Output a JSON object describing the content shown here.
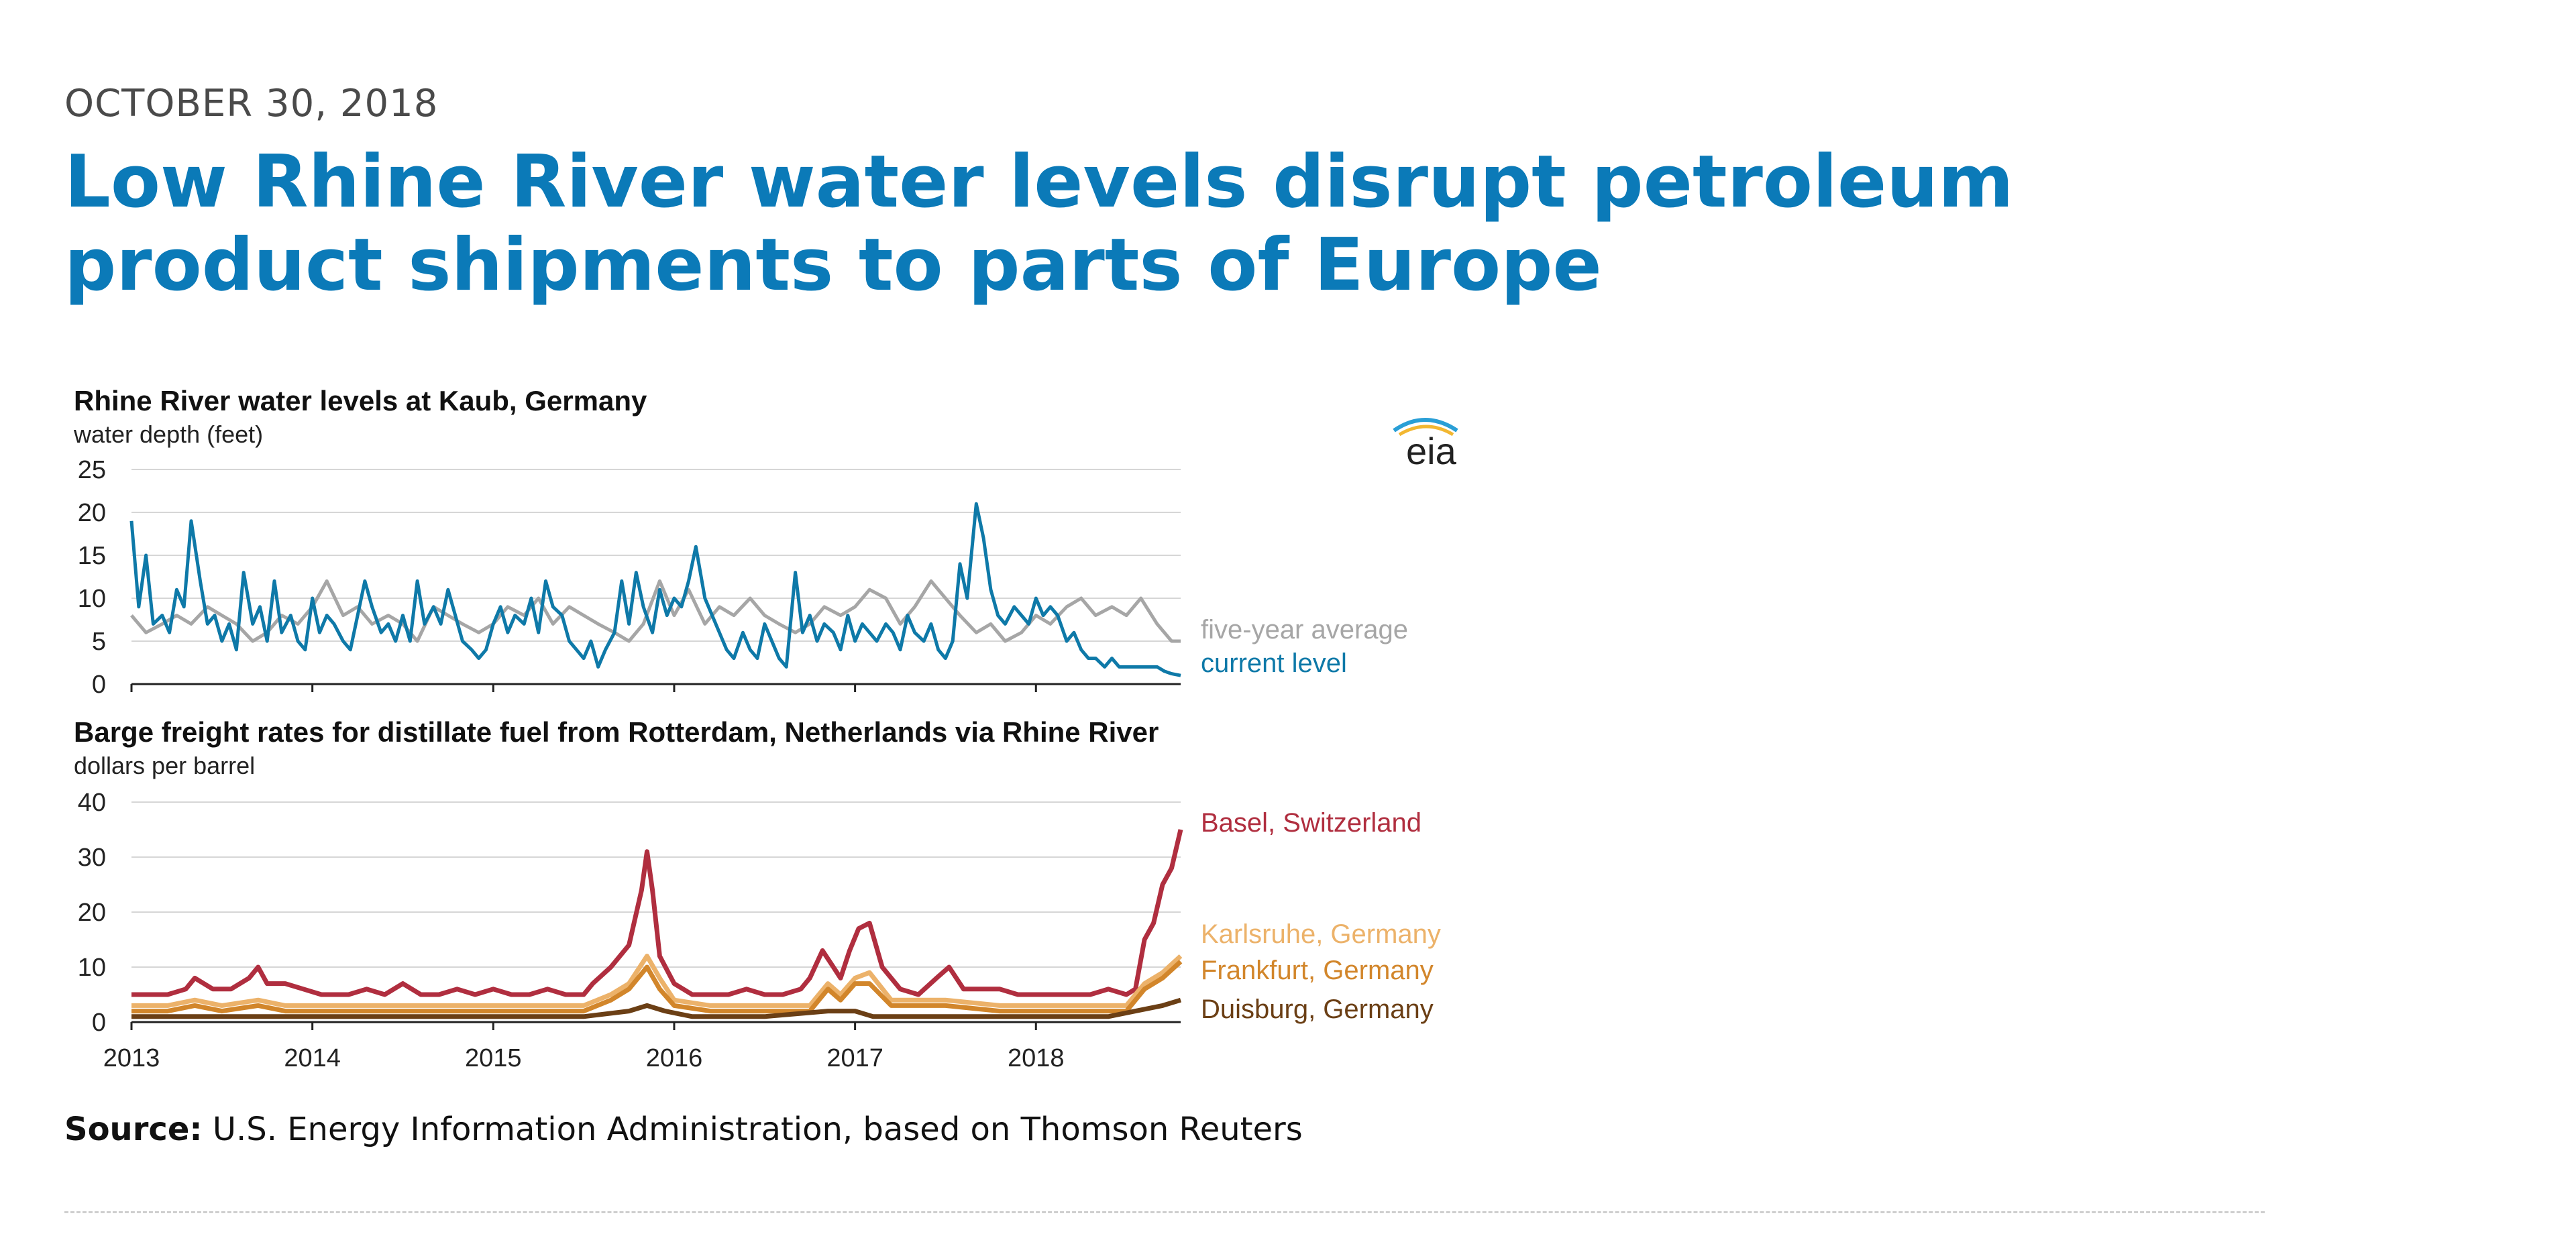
{
  "article": {
    "date": "OCTOBER 30, 2018",
    "title": "Low Rhine River water levels disrupt petroleum product shipments to parts of Europe",
    "source_label": "Source:",
    "source_text": " U.S. Energy Information Administration, based on Thomson Reuters"
  },
  "logo": {
    "text": "eia"
  },
  "chart_data": [
    {
      "type": "line",
      "title": "Rhine River water levels at Kaub, Germany",
      "ylabel": "water depth (feet)",
      "ylim": [
        0,
        25
      ],
      "yticks": [
        0,
        5,
        10,
        15,
        20,
        25
      ],
      "xlim": [
        2013,
        2018.8
      ],
      "grid": true,
      "legend": "right-inline",
      "series": [
        {
          "name": "five-year average",
          "color": "#a6a6a6",
          "x": [
            2013.0,
            2013.08,
            2013.17,
            2013.25,
            2013.33,
            2013.42,
            2013.5,
            2013.58,
            2013.67,
            2013.75,
            2013.83,
            2013.92,
            2014.0,
            2014.08,
            2014.17,
            2014.25,
            2014.33,
            2014.42,
            2014.5,
            2014.58,
            2014.67,
            2014.75,
            2014.83,
            2014.92,
            2015.0,
            2015.08,
            2015.17,
            2015.25,
            2015.33,
            2015.42,
            2015.5,
            2015.58,
            2015.67,
            2015.75,
            2015.83,
            2015.92,
            2016.0,
            2016.08,
            2016.17,
            2016.25,
            2016.33,
            2016.42,
            2016.5,
            2016.58,
            2016.67,
            2016.75,
            2016.83,
            2016.92,
            2017.0,
            2017.08,
            2017.17,
            2017.25,
            2017.33,
            2017.42,
            2017.5,
            2017.58,
            2017.67,
            2017.75,
            2017.83,
            2017.92,
            2018.0,
            2018.08,
            2018.17,
            2018.25,
            2018.33,
            2018.42,
            2018.5,
            2018.58,
            2018.67,
            2018.75,
            2018.8
          ],
          "values": [
            8,
            6,
            7,
            8,
            7,
            9,
            8,
            7,
            5,
            6,
            8,
            7,
            9,
            12,
            8,
            9,
            7,
            8,
            7,
            5,
            9,
            8,
            7,
            6,
            7,
            9,
            8,
            10,
            7,
            9,
            8,
            7,
            6,
            5,
            7,
            12,
            8,
            11,
            7,
            9,
            8,
            10,
            8,
            7,
            6,
            7,
            9,
            8,
            9,
            11,
            10,
            7,
            9,
            12,
            10,
            8,
            6,
            7,
            5,
            6,
            8,
            7,
            9,
            10,
            8,
            9,
            8,
            10,
            7,
            5,
            5
          ]
        },
        {
          "name": "current level",
          "color": "#0e79a8",
          "x": [
            2013.0,
            2013.04,
            2013.08,
            2013.12,
            2013.17,
            2013.21,
            2013.25,
            2013.29,
            2013.33,
            2013.38,
            2013.42,
            2013.46,
            2013.5,
            2013.54,
            2013.58,
            2013.62,
            2013.67,
            2013.71,
            2013.75,
            2013.79,
            2013.83,
            2013.88,
            2013.92,
            2013.96,
            2014.0,
            2014.04,
            2014.08,
            2014.12,
            2014.17,
            2014.21,
            2014.25,
            2014.29,
            2014.33,
            2014.38,
            2014.42,
            2014.46,
            2014.5,
            2014.54,
            2014.58,
            2014.62,
            2014.67,
            2014.71,
            2014.75,
            2014.79,
            2014.83,
            2014.88,
            2014.92,
            2014.96,
            2015.0,
            2015.04,
            2015.08,
            2015.12,
            2015.17,
            2015.21,
            2015.25,
            2015.29,
            2015.33,
            2015.38,
            2015.42,
            2015.46,
            2015.5,
            2015.54,
            2015.58,
            2015.62,
            2015.67,
            2015.71,
            2015.75,
            2015.79,
            2015.83,
            2015.88,
            2015.92,
            2015.96,
            2016.0,
            2016.04,
            2016.08,
            2016.12,
            2016.17,
            2016.21,
            2016.25,
            2016.29,
            2016.33,
            2016.38,
            2016.42,
            2016.46,
            2016.5,
            2016.54,
            2016.58,
            2016.62,
            2016.67,
            2016.71,
            2016.75,
            2016.79,
            2016.83,
            2016.88,
            2016.92,
            2016.96,
            2017.0,
            2017.04,
            2017.08,
            2017.12,
            2017.17,
            2017.21,
            2017.25,
            2017.29,
            2017.33,
            2017.38,
            2017.42,
            2017.46,
            2017.5,
            2017.54,
            2017.58,
            2017.62,
            2017.67,
            2017.71,
            2017.75,
            2017.79,
            2017.83,
            2017.88,
            2017.92,
            2017.96,
            2018.0,
            2018.04,
            2018.08,
            2018.12,
            2018.17,
            2018.21,
            2018.25,
            2018.29,
            2018.33,
            2018.38,
            2018.42,
            2018.46,
            2018.5,
            2018.54,
            2018.58,
            2018.62,
            2018.67,
            2018.71,
            2018.75,
            2018.8
          ],
          "values": [
            19,
            9,
            15,
            7,
            8,
            6,
            11,
            9,
            19,
            12,
            7,
            8,
            5,
            7,
            4,
            13,
            7,
            9,
            5,
            12,
            6,
            8,
            5,
            4,
            10,
            6,
            8,
            7,
            5,
            4,
            8,
            12,
            9,
            6,
            7,
            5,
            8,
            5,
            12,
            7,
            9,
            7,
            11,
            8,
            5,
            4,
            3,
            4,
            7,
            9,
            6,
            8,
            7,
            10,
            6,
            12,
            9,
            8,
            5,
            4,
            3,
            5,
            2,
            4,
            6,
            12,
            7,
            13,
            9,
            6,
            11,
            8,
            10,
            9,
            12,
            16,
            10,
            8,
            6,
            4,
            3,
            6,
            4,
            3,
            7,
            5,
            3,
            2,
            13,
            6,
            8,
            5,
            7,
            6,
            4,
            8,
            5,
            7,
            6,
            5,
            7,
            6,
            4,
            8,
            6,
            5,
            7,
            4,
            3,
            5,
            14,
            10,
            21,
            17,
            11,
            8,
            7,
            9,
            8,
            7,
            10,
            8,
            9,
            8,
            5,
            6,
            4,
            3,
            3,
            2,
            3,
            2,
            2,
            2,
            2,
            2,
            2,
            1.5,
            1.2,
            1
          ]
        }
      ]
    },
    {
      "type": "line",
      "title": "Barge freight rates for distillate fuel from Rotterdam, Netherlands via Rhine River",
      "ylabel": "dollars per barrel",
      "ylim": [
        0,
        40
      ],
      "yticks": [
        0,
        10,
        20,
        30,
        40
      ],
      "xlim": [
        2013,
        2018.8
      ],
      "xticks": [
        "2013",
        "2014",
        "2015",
        "2016",
        "2017",
        "2018"
      ],
      "grid": true,
      "legend": "right-inline",
      "series": [
        {
          "name": "Basel, Switzerland",
          "color": "#b02e3f",
          "x": [
            2013.0,
            2013.1,
            2013.2,
            2013.3,
            2013.35,
            2013.45,
            2013.55,
            2013.65,
            2013.7,
            2013.75,
            2013.85,
            2013.95,
            2014.05,
            2014.2,
            2014.3,
            2014.4,
            2014.5,
            2014.6,
            2014.7,
            2014.8,
            2014.9,
            2015.0,
            2015.1,
            2015.2,
            2015.3,
            2015.4,
            2015.5,
            2015.55,
            2015.65,
            2015.75,
            2015.82,
            2015.85,
            2015.88,
            2015.92,
            2016.0,
            2016.1,
            2016.2,
            2016.3,
            2016.4,
            2016.5,
            2016.6,
            2016.7,
            2016.75,
            2016.82,
            2016.88,
            2016.92,
            2016.97,
            2017.02,
            2017.08,
            2017.15,
            2017.25,
            2017.35,
            2017.45,
            2017.52,
            2017.6,
            2017.7,
            2017.8,
            2017.9,
            2018.0,
            2018.1,
            2018.2,
            2018.3,
            2018.4,
            2018.5,
            2018.55,
            2018.6,
            2018.65,
            2018.7,
            2018.75,
            2018.8
          ],
          "values": [
            5,
            5,
            5,
            6,
            8,
            6,
            6,
            8,
            10,
            7,
            7,
            6,
            5,
            5,
            6,
            5,
            7,
            5,
            5,
            6,
            5,
            6,
            5,
            5,
            6,
            5,
            5,
            7,
            10,
            14,
            24,
            31,
            24,
            12,
            7,
            5,
            5,
            5,
            6,
            5,
            5,
            6,
            8,
            13,
            10,
            8,
            13,
            17,
            18,
            10,
            6,
            5,
            8,
            10,
            6,
            6,
            6,
            5,
            5,
            5,
            5,
            5,
            6,
            5,
            6,
            15,
            18,
            25,
            28,
            35
          ]
        },
        {
          "name": "Karlsruhe, Germany",
          "color": "#ecb26a",
          "x": [
            2013.0,
            2013.2,
            2013.35,
            2013.5,
            2013.7,
            2013.85,
            2014.0,
            2014.3,
            2014.5,
            2014.8,
            2015.0,
            2015.3,
            2015.5,
            2015.65,
            2015.75,
            2015.85,
            2015.92,
            2016.0,
            2016.2,
            2016.5,
            2016.75,
            2016.85,
            2016.92,
            2017.0,
            2017.08,
            2017.2,
            2017.5,
            2017.8,
            2018.0,
            2018.3,
            2018.5,
            2018.6,
            2018.7,
            2018.8
          ],
          "values": [
            3,
            3,
            4,
            3,
            4,
            3,
            3,
            3,
            3,
            3,
            3,
            3,
            3,
            5,
            7,
            12,
            8,
            4,
            3,
            3,
            3,
            7,
            5,
            8,
            9,
            4,
            4,
            3,
            3,
            3,
            3,
            7,
            9,
            12
          ]
        },
        {
          "name": "Frankfurt, Germany",
          "color": "#d2862b",
          "x": [
            2013.0,
            2013.2,
            2013.35,
            2013.5,
            2013.7,
            2013.85,
            2014.0,
            2014.3,
            2014.5,
            2014.8,
            2015.0,
            2015.3,
            2015.5,
            2015.65,
            2015.75,
            2015.85,
            2015.92,
            2016.0,
            2016.2,
            2016.5,
            2016.75,
            2016.85,
            2016.92,
            2017.0,
            2017.08,
            2017.2,
            2017.5,
            2017.8,
            2018.0,
            2018.3,
            2018.5,
            2018.6,
            2018.7,
            2018.8
          ],
          "values": [
            2,
            2,
            3,
            2,
            3,
            2,
            2,
            2,
            2,
            2,
            2,
            2,
            2,
            4,
            6,
            10,
            6,
            3,
            2,
            2,
            2,
            6,
            4,
            7,
            7,
            3,
            3,
            2,
            2,
            2,
            2,
            6,
            8,
            11
          ]
        },
        {
          "name": "Duisburg, Germany",
          "color": "#6b3f15",
          "x": [
            2013.0,
            2013.5,
            2014.0,
            2014.5,
            2015.0,
            2015.5,
            2015.75,
            2015.85,
            2015.95,
            2016.1,
            2016.5,
            2016.85,
            2017.0,
            2017.1,
            2017.5,
            2018.0,
            2018.4,
            2018.55,
            2018.7,
            2018.8
          ],
          "values": [
            1,
            1,
            1,
            1,
            1,
            1,
            2,
            3,
            2,
            1,
            1,
            2,
            2,
            1,
            1,
            1,
            1,
            2,
            3,
            4
          ]
        }
      ]
    }
  ]
}
